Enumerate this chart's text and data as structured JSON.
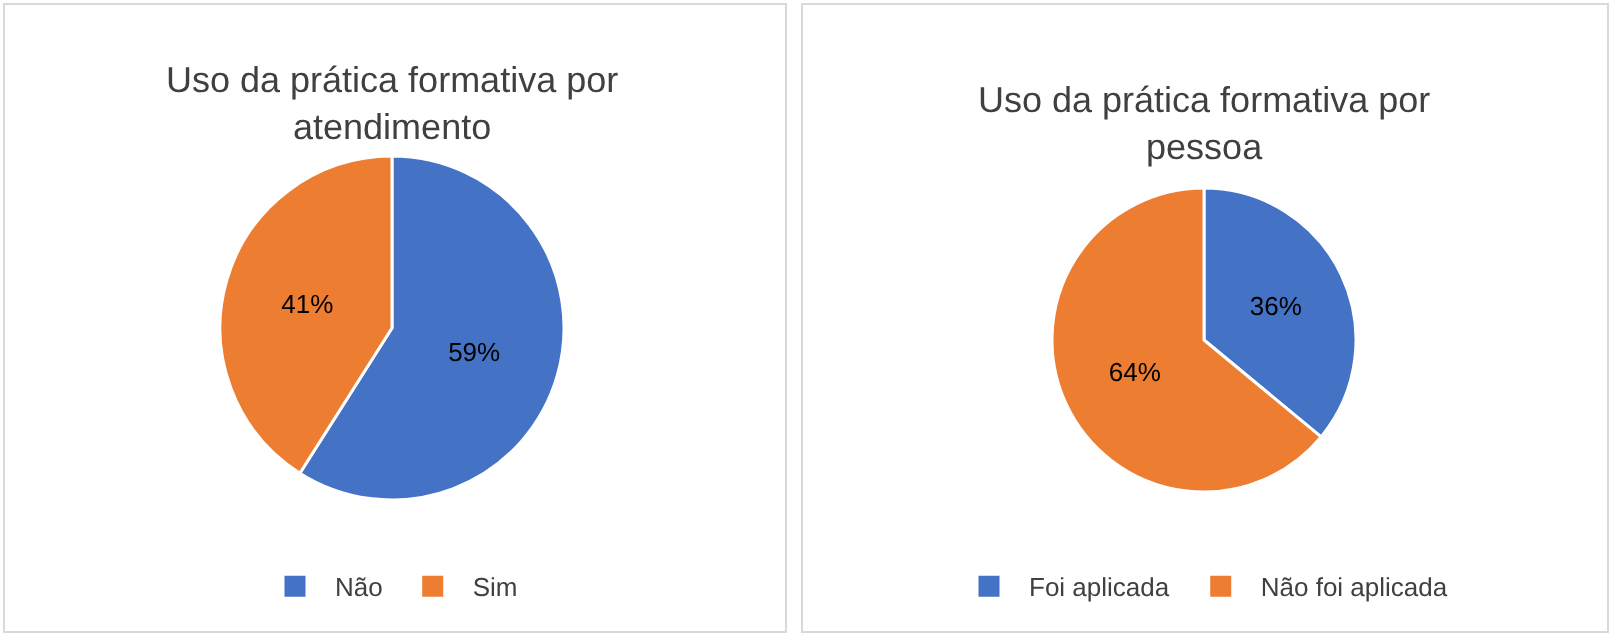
{
  "chart_data": [
    {
      "type": "pie",
      "title": "Uso da prática formativa por atendimento",
      "categories": [
        "Não",
        "Sim"
      ],
      "values": [
        59,
        41
      ],
      "colors": [
        "#4472c4",
        "#ed7d31"
      ],
      "value_labels": [
        "59%",
        "41%"
      ],
      "legend": "bottom"
    },
    {
      "type": "pie",
      "title": "Uso da prática formativa por pessoa",
      "categories": [
        "Foi aplicada",
        "Não foi aplicada"
      ],
      "values": [
        36,
        64
      ],
      "colors": [
        "#4472c4",
        "#ed7d31"
      ],
      "value_labels": [
        "36%",
        "64%"
      ],
      "legend": "bottom"
    }
  ]
}
